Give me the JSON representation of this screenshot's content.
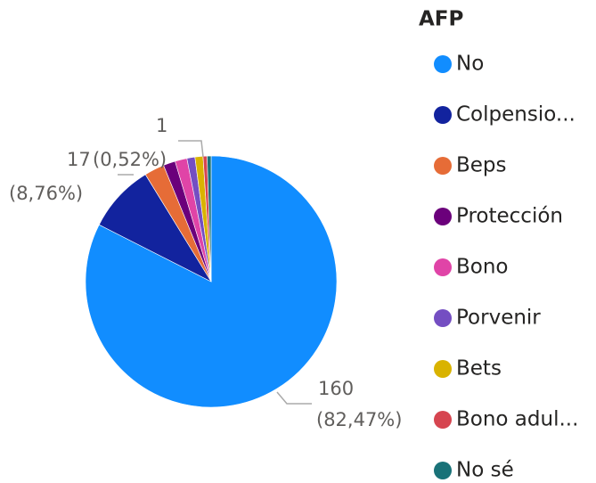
{
  "chart_data": {
    "type": "pie",
    "legend_title": "AFP",
    "categories": [
      "No",
      "Colpensio...",
      "Beps",
      "Protección",
      "Bono",
      "Porvenir",
      "Bets",
      "Bono adul...",
      "No sé"
    ],
    "values": [
      160,
      17,
      5,
      3,
      3,
      2,
      2,
      1,
      1
    ],
    "percent_labels": [
      "(82,47%)",
      "(8,76%)",
      null,
      null,
      null,
      null,
      null,
      null,
      "(0,52%)"
    ],
    "colors": [
      "#118DFF",
      "#12239E",
      "#E66C37",
      "#6B007B",
      "#E044A7",
      "#744EC2",
      "#D9B300",
      "#D64550",
      "#197278"
    ],
    "legend": "right"
  }
}
